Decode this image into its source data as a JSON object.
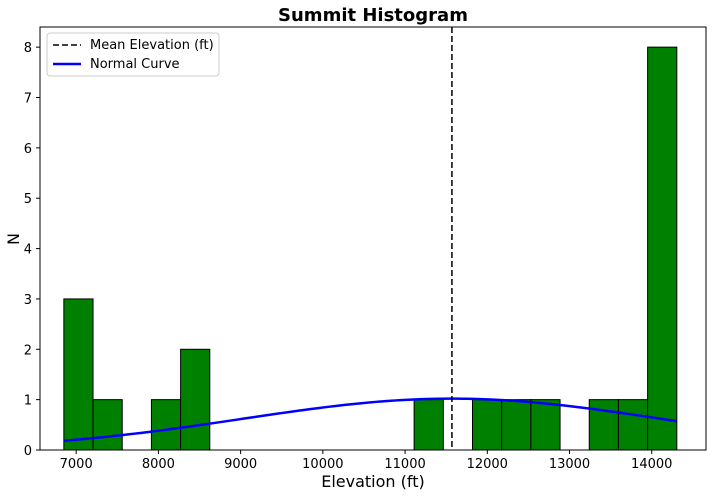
{
  "chart_data": {
    "type": "bar",
    "title": "Summit Histogram",
    "xlabel": "Elevation (ft)",
    "ylabel": "N",
    "xlim": [
      6560,
      14660
    ],
    "ylim": [
      0,
      8.4
    ],
    "xticks": [
      7000,
      8000,
      9000,
      10000,
      11000,
      12000,
      13000,
      14000
    ],
    "yticks": [
      0,
      1,
      2,
      3,
      4,
      5,
      6,
      7,
      8
    ],
    "bar_color": "#008000",
    "bar_edge_color": "#000000",
    "bins": [
      {
        "x0": 6850,
        "x1": 7205,
        "count": 3
      },
      {
        "x0": 7205,
        "x1": 7560,
        "count": 1
      },
      {
        "x0": 7915,
        "x1": 8270,
        "count": 1
      },
      {
        "x0": 8270,
        "x1": 8625,
        "count": 2
      },
      {
        "x0": 11110,
        "x1": 11465,
        "count": 1
      },
      {
        "x0": 11820,
        "x1": 12175,
        "count": 1
      },
      {
        "x0": 12175,
        "x1": 12530,
        "count": 1
      },
      {
        "x0": 12530,
        "x1": 12885,
        "count": 1
      },
      {
        "x0": 13240,
        "x1": 13595,
        "count": 1
      },
      {
        "x0": 13595,
        "x1": 13950,
        "count": 1
      },
      {
        "x0": 13950,
        "x1": 14305,
        "count": 8
      }
    ],
    "mean_line": {
      "name": "Mean Elevation (ft)",
      "x": 11570,
      "color": "#000000",
      "style": "dashed"
    },
    "normal_curve": {
      "name": "Normal Curve",
      "color": "#0000ff",
      "mean": 11570,
      "peak": 1.02,
      "sd": 2550,
      "x_range": [
        6850,
        14305
      ]
    },
    "legend": {
      "position": "top-left",
      "entries": [
        "Mean Elevation (ft)",
        "Normal Curve"
      ]
    },
    "grid": false
  }
}
